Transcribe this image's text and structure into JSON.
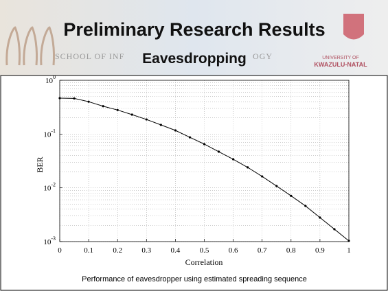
{
  "slide": {
    "title": "Preliminary Research Results",
    "subtitle": "Eavesdropping",
    "banner_left": "SCHOOL OF INF",
    "banner_right": "OGY",
    "university_line1": "UNIVERSITY OF",
    "university_line2": "KWAZULU-NATAL",
    "caption": "Performance of eavesdropper using estimated spreading sequence"
  },
  "chart_data": {
    "type": "line",
    "xlabel": "Correlation",
    "ylabel": "BER",
    "x": [
      0,
      0.05,
      0.1,
      0.15,
      0.2,
      0.25,
      0.3,
      0.35,
      0.4,
      0.45,
      0.5,
      0.55,
      0.6,
      0.65,
      0.7,
      0.75,
      0.8,
      0.85,
      0.9,
      0.95,
      1
    ],
    "series": [
      {
        "color": "#000000",
        "values": [
          0.466,
          0.46,
          0.4,
          0.33,
          0.28,
          0.23,
          0.187,
          0.148,
          0.117,
          0.087,
          0.065,
          0.047,
          0.034,
          0.024,
          0.0163,
          0.0108,
          0.0071,
          0.0046,
          0.0028,
          0.0017,
          0.00103
        ]
      }
    ],
    "xlim": [
      0,
      1
    ],
    "xticks": [
      0,
      0.1,
      0.2,
      0.3,
      0.4,
      0.5,
      0.6,
      0.7,
      0.8,
      0.9,
      1
    ],
    "ylim": [
      0.001,
      1
    ],
    "log_y": true,
    "grid": true,
    "yticks": [
      {
        "value": 1,
        "label": "10",
        "exponent": "0"
      },
      {
        "value": 0.1,
        "label": "10",
        "exponent": "-1"
      },
      {
        "value": 0.01,
        "label": "10",
        "exponent": "-2"
      },
      {
        "value": 0.001,
        "label": "10",
        "exponent": "-3"
      }
    ]
  }
}
